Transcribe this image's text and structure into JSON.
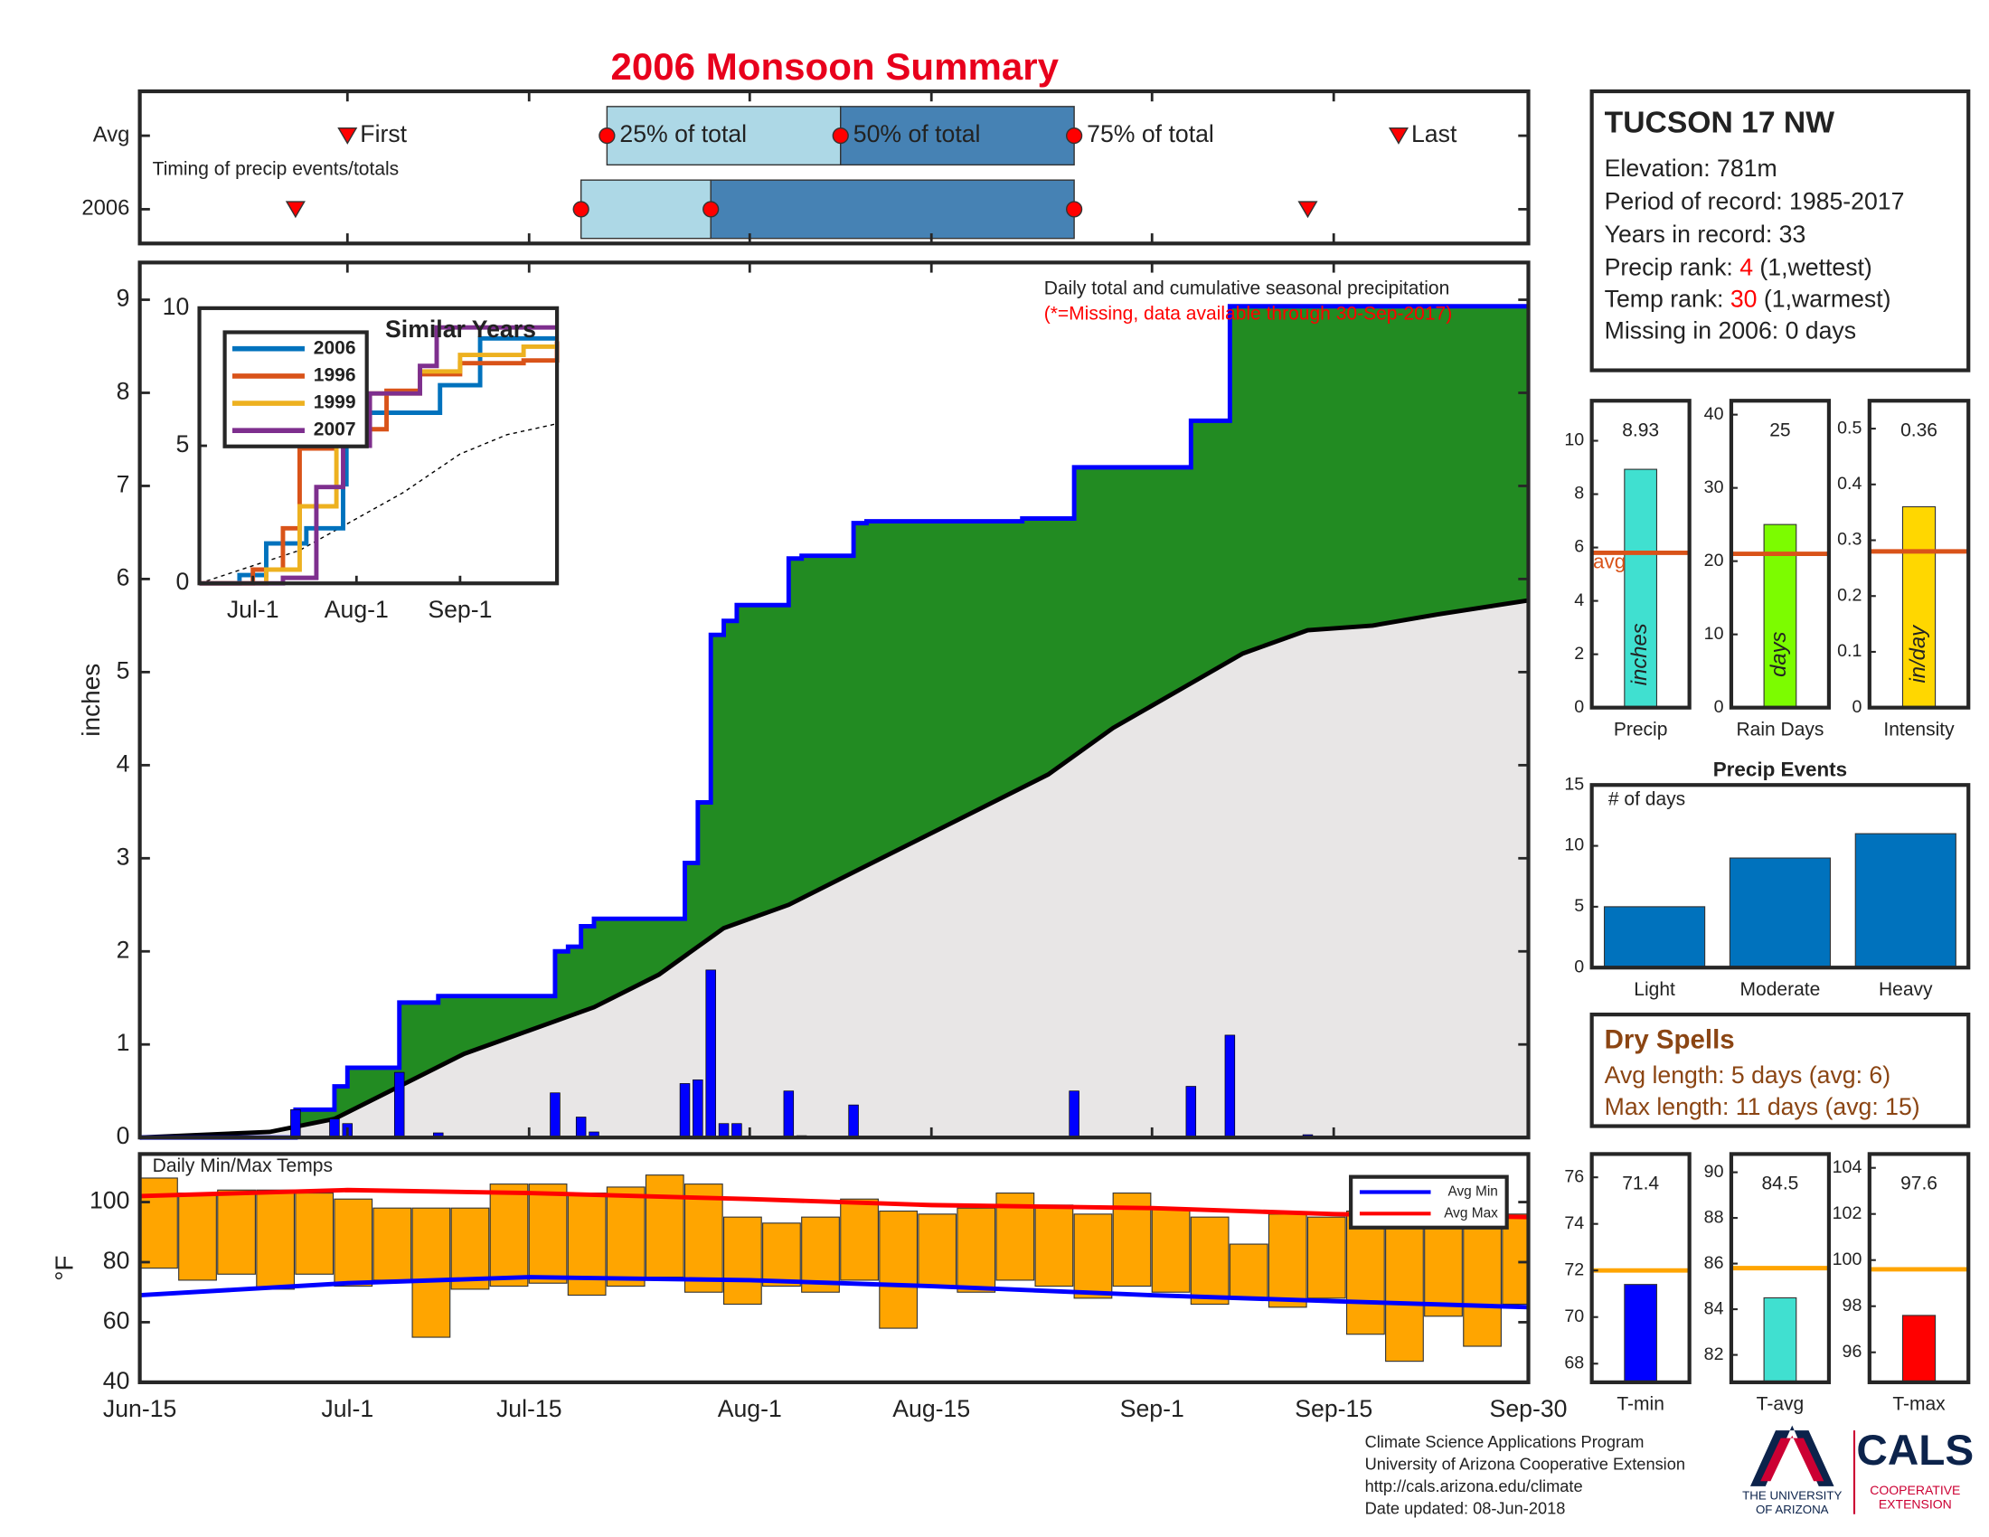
{
  "chart_data": [
    {
      "type": "timeline",
      "title": "2006 Monsoon Summary",
      "annotation": "Timing of precip events/totals",
      "categories": [
        "Avg",
        "2006"
      ],
      "xlim": [
        "Jun-15",
        "Sep-30"
      ],
      "markers": [
        "First",
        "25% of total",
        "50% of total",
        "75% of total",
        "Last"
      ],
      "rows": [
        [
          "Jul-1",
          "Jul-21",
          "Aug-8",
          "Aug-26",
          "Sep-20"
        ],
        [
          "Jun-27",
          "Jul-19",
          "Jul-29",
          "Aug-26",
          "Sep-13"
        ]
      ],
      "colors": {
        "light": "#add8e6",
        "dark": "#4682b4",
        "marker": "#ff0000"
      }
    },
    {
      "type": "area",
      "ylabel": "inches",
      "annotation": "Daily total and cumulative seasonal precipitation",
      "note": "(*=Missing, data available through 30-Sep-2017)",
      "xlim": [
        "Jun-15",
        "Sep-30"
      ],
      "ylim": [
        0,
        9.4
      ],
      "yticks": [
        0,
        1,
        2,
        3,
        4,
        5,
        6,
        7,
        8,
        9
      ],
      "cumulative": {
        "color": "#0000ff",
        "fill": "#228b22",
        "x": [
          "Jun-15",
          "Jun-27",
          "Jun-30",
          "Jul-1",
          "Jul-5",
          "Jul-8",
          "Jul-17",
          "Jul-18",
          "Jul-19",
          "Jul-20",
          "Jul-27",
          "Jul-28",
          "Jul-29",
          "Jul-30",
          "Jul-31",
          "Aug-4",
          "Aug-5",
          "Aug-9",
          "Aug-10",
          "Aug-22",
          "Aug-26",
          "Sep-4",
          "Sep-7",
          "Sep-30"
        ],
        "values": [
          0,
          0.3,
          0.55,
          0.75,
          1.45,
          1.52,
          2.0,
          2.05,
          2.27,
          2.35,
          2.95,
          3.6,
          5.4,
          5.55,
          5.72,
          6.22,
          6.25,
          6.6,
          6.62,
          6.65,
          7.2,
          7.7,
          8.93,
          8.93
        ]
      },
      "average": {
        "color": "#000000",
        "fill": "#e8e6e6",
        "x": [
          "Jun-15",
          "Jun-20",
          "Jun-25",
          "Jun-30",
          "Jul-5",
          "Jul-10",
          "Jul-15",
          "Jul-20",
          "Jul-25",
          "Jul-30",
          "Aug-4",
          "Aug-9",
          "Aug-14",
          "Aug-19",
          "Aug-24",
          "Aug-29",
          "Sep-3",
          "Sep-8",
          "Sep-13",
          "Sep-18",
          "Sep-23",
          "Sep-30"
        ],
        "values": [
          0,
          0.03,
          0.06,
          0.2,
          0.55,
          0.9,
          1.15,
          1.4,
          1.75,
          2.25,
          2.5,
          2.85,
          3.2,
          3.55,
          3.9,
          4.4,
          4.8,
          5.2,
          5.45,
          5.5,
          5.62,
          5.77
        ]
      },
      "daily": {
        "color": "#0000ff",
        "x": [
          "Jun-27",
          "Jun-30",
          "Jul-1",
          "Jul-5",
          "Jul-8",
          "Jul-17",
          "Jul-19",
          "Jul-20",
          "Jul-27",
          "Jul-28",
          "Jul-29",
          "Jul-30",
          "Jul-31",
          "Aug-4",
          "Aug-5",
          "Aug-9",
          "Aug-26",
          "Sep-4",
          "Sep-7",
          "Sep-13"
        ],
        "values": [
          0.3,
          0.2,
          0.15,
          0.7,
          0.05,
          0.48,
          0.22,
          0.06,
          0.58,
          0.62,
          1.8,
          0.15,
          0.15,
          0.5,
          0.02,
          0.35,
          0.5,
          0.55,
          1.1,
          0.03
        ]
      }
    },
    {
      "type": "line",
      "title": "Similar Years",
      "xlim": [
        "Jun-15",
        "Sep-30"
      ],
      "xticks": [
        "Jul-1",
        "Aug-1",
        "Sep-1"
      ],
      "ylim": [
        0,
        10
      ],
      "yticks": [
        0,
        5,
        10
      ],
      "series": [
        {
          "name": "2006",
          "color": "#0072bd",
          "x": [
            "Jun-15",
            "Jun-27",
            "Jul-5",
            "Jul-17",
            "Jul-28",
            "Jul-29",
            "Aug-4",
            "Aug-26",
            "Sep-7",
            "Sep-30"
          ],
          "values": [
            0,
            0.3,
            1.45,
            2.0,
            3.6,
            5.4,
            6.2,
            7.2,
            8.9,
            8.9
          ]
        },
        {
          "name": "1996",
          "color": "#d95319",
          "x": [
            "Jun-15",
            "Jul-1",
            "Jul-10",
            "Jul-15",
            "Jul-25",
            "Aug-1",
            "Aug-10",
            "Aug-20",
            "Sep-1",
            "Sep-20",
            "Sep-30"
          ],
          "values": [
            0,
            0.5,
            2.0,
            4.9,
            5.2,
            5.6,
            7.0,
            7.6,
            8.0,
            8.1,
            8.8
          ]
        },
        {
          "name": "1999",
          "color": "#edb120",
          "x": [
            "Jun-15",
            "Jul-5",
            "Jul-15",
            "Jul-26",
            "Aug-5",
            "Aug-20",
            "Sep-1",
            "Sep-20",
            "Sep-30"
          ],
          "values": [
            0,
            0.5,
            2.8,
            5.0,
            6.9,
            7.7,
            8.3,
            8.6,
            8.6
          ]
        },
        {
          "name": "2007",
          "color": "#7e2f8e",
          "x": [
            "Jun-15",
            "Jul-10",
            "Jul-20",
            "Jul-28",
            "Aug-5",
            "Aug-20",
            "Aug-25",
            "Sep-5",
            "Sep-30"
          ],
          "values": [
            0,
            0.2,
            3.5,
            5.0,
            6.9,
            7.9,
            9.3,
            9.3,
            9.3
          ]
        }
      ],
      "average": {
        "color": "#000000",
        "x": [
          "Jun-15",
          "Jul-15",
          "Aug-15",
          "Sep-1",
          "Sep-15",
          "Sep-30"
        ],
        "values": [
          0,
          1.2,
          3.3,
          4.7,
          5.4,
          5.8
        ]
      }
    },
    {
      "type": "range-bar",
      "title": "Daily Min/Max Temps",
      "ylabel": "°F",
      "xlim": [
        "Jun-15",
        "Sep-30"
      ],
      "xticks": [
        "Jun-15",
        "Jul-1",
        "Jul-15",
        "Aug-1",
        "Aug-15",
        "Sep-1",
        "Sep-15",
        "Sep-30"
      ],
      "ylim": [
        40,
        116
      ],
      "yticks": [
        40,
        60,
        80,
        100
      ],
      "bars": {
        "color": "#ffa500",
        "x": [
          "Jun-15",
          "Jun-18",
          "Jun-21",
          "Jun-24",
          "Jun-27",
          "Jun-30",
          "Jul-3",
          "Jul-6",
          "Jul-9",
          "Jul-12",
          "Jul-15",
          "Jul-18",
          "Jul-21",
          "Jul-24",
          "Jul-27",
          "Jul-30",
          "Aug-2",
          "Aug-5",
          "Aug-8",
          "Aug-11",
          "Aug-14",
          "Aug-17",
          "Aug-20",
          "Aug-23",
          "Aug-26",
          "Aug-29",
          "Sep-1",
          "Sep-4",
          "Sep-7",
          "Sep-10",
          "Sep-13",
          "Sep-16",
          "Sep-19",
          "Sep-22",
          "Sep-25",
          "Sep-28"
        ],
        "low": [
          78,
          74,
          76,
          71,
          76,
          72,
          74,
          55,
          71,
          72,
          73,
          69,
          72,
          75,
          70,
          66,
          72,
          70,
          74,
          58,
          72,
          70,
          74,
          72,
          68,
          72,
          70,
          66,
          68,
          65,
          68,
          56,
          47,
          62,
          52,
          66
        ],
        "high": [
          108,
          103,
          104,
          104,
          103,
          101,
          98,
          98,
          98,
          106,
          106,
          103,
          105,
          109,
          106,
          95,
          93,
          95,
          101,
          97,
          96,
          98,
          103,
          99,
          96,
          103,
          98,
          95,
          86,
          96,
          95,
          97,
          95,
          96,
          93,
          96
        ]
      },
      "series": [
        {
          "name": "Avg Min",
          "color": "#0000ff",
          "x": [
            "Jun-15",
            "Jul-1",
            "Jul-15",
            "Aug-1",
            "Aug-15",
            "Sep-1",
            "Sep-15",
            "Sep-30"
          ],
          "values": [
            69,
            73,
            75,
            74,
            72,
            69,
            67,
            65
          ]
        },
        {
          "name": "Avg Max",
          "color": "#ff0000",
          "x": [
            "Jun-15",
            "Jul-1",
            "Jul-15",
            "Aug-1",
            "Aug-15",
            "Sep-1",
            "Sep-15",
            "Sep-30"
          ],
          "values": [
            102,
            104,
            103,
            101,
            99,
            98,
            96,
            95
          ]
        }
      ]
    },
    {
      "type": "bar",
      "categories": [
        "Precip"
      ],
      "values": [
        8.93
      ],
      "show_values": true,
      "avg": 5.8,
      "avg_label": "avg",
      "unit": "inches",
      "ylim": [
        0,
        11.5
      ],
      "yticks": [
        0,
        2,
        4,
        6,
        8,
        10
      ],
      "color": "#40e0d0",
      "avg_color": "#d95319"
    },
    {
      "type": "bar",
      "categories": [
        "Rain Days"
      ],
      "values": [
        25
      ],
      "show_values": true,
      "avg": 21,
      "unit": "days",
      "ylim": [
        0,
        41.9
      ],
      "yticks": [
        0,
        10,
        20,
        30,
        40
      ],
      "color": "#7cfc00",
      "avg_color": "#d95319"
    },
    {
      "type": "bar",
      "categories": [
        "Intensity"
      ],
      "values": [
        0.36
      ],
      "show_values": true,
      "avg": 0.28,
      "unit": "in/day",
      "ylim": [
        0,
        0.55
      ],
      "yticks": [
        0,
        0.1,
        0.2,
        0.3,
        0.4,
        0.5
      ],
      "color": "#ffd700",
      "avg_color": "#d95319"
    },
    {
      "type": "bar",
      "title": "Precip Events",
      "ylabel": "# of days",
      "categories": [
        "Light",
        "Moderate",
        "Heavy"
      ],
      "values": [
        5,
        9,
        11
      ],
      "ylim": [
        0,
        15
      ],
      "yticks": [
        0,
        5,
        10,
        15
      ],
      "color": "#0072bd"
    },
    {
      "type": "bar",
      "categories": [
        "T-min"
      ],
      "values": [
        71.4
      ],
      "show_values": true,
      "avg": 72,
      "ylim": [
        67.2,
        77
      ],
      "yticks": [
        68,
        70,
        72,
        74,
        76
      ],
      "color": "#0000ff",
      "avg_color": "#ffa500"
    },
    {
      "type": "bar",
      "categories": [
        "T-avg"
      ],
      "values": [
        84.5
      ],
      "show_values": true,
      "avg": 85.8,
      "ylim": [
        80.8,
        90.8
      ],
      "yticks": [
        82,
        84,
        86,
        88,
        90
      ],
      "color": "#40e0d0",
      "avg_color": "#ffa500"
    },
    {
      "type": "bar",
      "categories": [
        "T-max"
      ],
      "values": [
        97.6
      ],
      "show_values": true,
      "avg": 99.6,
      "ylim": [
        94.7,
        104.6
      ],
      "yticks": [
        96,
        98,
        100,
        102,
        104
      ],
      "color": "#ff0000",
      "avg_color": "#ffa500"
    }
  ],
  "info": {
    "title": "TUCSON 17 NW",
    "lines": [
      "Elevation: 781m",
      "Period of record: 1985-2017",
      "Years in record: 33"
    ],
    "precip_rank": {
      "label": "Precip rank: ",
      "value": 4,
      "note": " (1,wettest)"
    },
    "temp_rank": {
      "label": "Temp rank: ",
      "value": 30,
      "note": " (1,warmest)"
    },
    "missing": "Missing in 2006: 0 days"
  },
  "dry_spells": {
    "title": "Dry Spells",
    "lines": [
      "Avg length: 5 days (avg: 6)",
      "Max length: 11 days (avg: 15)"
    ]
  },
  "footer": {
    "lines": [
      "Climate Science Applications Program",
      "University of Arizona Cooperative Extension",
      "http://cals.arizona.edu/climate",
      "Date updated: 08-Jun-2018"
    ],
    "university": [
      "THE UNIVERSITY",
      "OF ARIZONA"
    ],
    "cals": "CALS",
    "extension": [
      "COOPERATIVE",
      "EXTENSION"
    ]
  }
}
